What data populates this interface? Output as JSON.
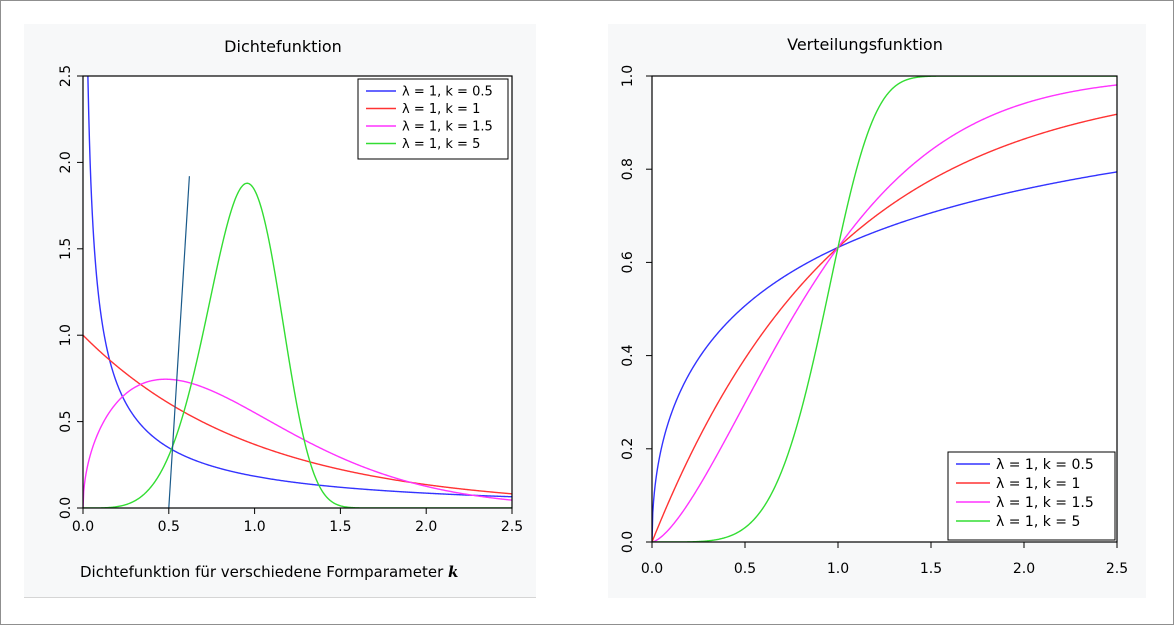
{
  "chart_data": [
    {
      "type": "line",
      "title": "Dichtefunktion",
      "xlabel": "Dichtefunktion für verschiedene Formparameter",
      "xlabel_symbol": "k",
      "ylabel": "",
      "xlim": [
        0,
        2.5
      ],
      "ylim": [
        0,
        2.5
      ],
      "xticks": [
        "0.0",
        "0.5",
        "1.0",
        "1.5",
        "2.0",
        "2.5"
      ],
      "yticks": [
        "0.0",
        "0.5",
        "1.0",
        "1.5",
        "2.0",
        "2.5"
      ],
      "grid": false,
      "legend_position": "top-right",
      "function": "weibull_pdf",
      "series": [
        {
          "name": "λ = 1, k = 0.5",
          "lambda": 1,
          "k": 0.5,
          "color": "#3333ff"
        },
        {
          "name": "λ = 1, k = 1",
          "lambda": 1,
          "k": 1,
          "color": "#ff3333"
        },
        {
          "name": "λ = 1, k = 1.5",
          "lambda": 1,
          "k": 1.5,
          "color": "#ff33ff"
        },
        {
          "name": "λ = 1, k = 5",
          "lambda": 1,
          "k": 5,
          "color": "#33dd33"
        }
      ],
      "annotation_line": {
        "x": [
          0.5,
          0.62
        ],
        "y": [
          0.0,
          1.92
        ],
        "color": "#1a5a8a"
      }
    },
    {
      "type": "line",
      "title": "Verteilungsfunktion",
      "xlabel": "",
      "ylabel": "",
      "xlim": [
        0,
        2.5
      ],
      "ylim": [
        0,
        1.0
      ],
      "xticks": [
        "0.0",
        "0.5",
        "1.0",
        "1.5",
        "2.0",
        "2.5"
      ],
      "yticks": [
        "0.0",
        "0.2",
        "0.4",
        "0.6",
        "0.8",
        "1.0"
      ],
      "grid": false,
      "legend_position": "bottom-right",
      "function": "weibull_cdf",
      "series": [
        {
          "name": "λ = 1, k = 0.5",
          "lambda": 1,
          "k": 0.5,
          "color": "#3333ff"
        },
        {
          "name": "λ = 1, k = 1",
          "lambda": 1,
          "k": 1,
          "color": "#ff3333"
        },
        {
          "name": "λ = 1, k = 1.5",
          "lambda": 1,
          "k": 1.5,
          "color": "#ff33ff"
        },
        {
          "name": "λ = 1, k = 5",
          "lambda": 1,
          "k": 5,
          "color": "#33dd33"
        }
      ]
    }
  ]
}
